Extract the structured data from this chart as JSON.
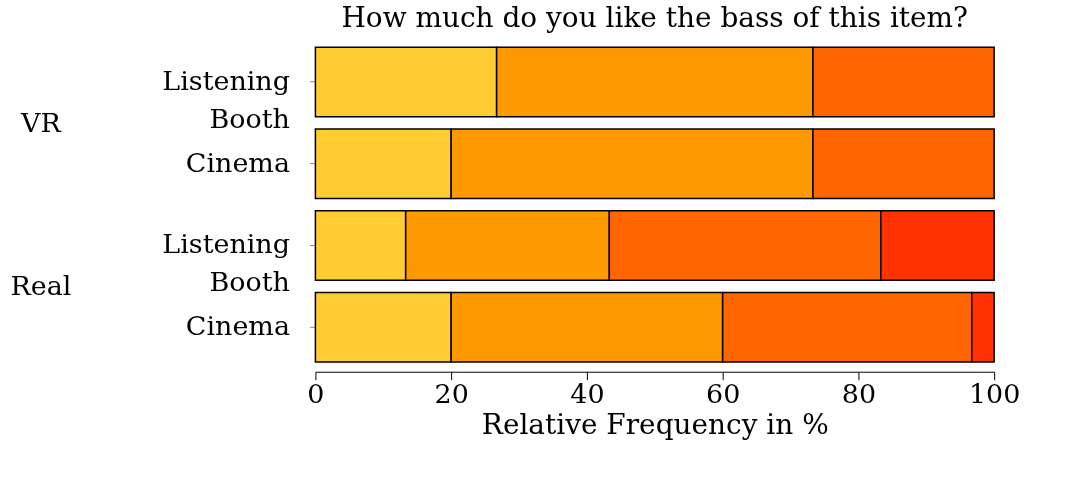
{
  "chart_data": {
    "type": "bar",
    "orientation": "horizontal",
    "stacked": true,
    "title": "How much do you like the bass of this item?",
    "xlabel": "Relative Frequency in %",
    "categories": [
      "Listening Booth",
      "Cinema",
      "Listening Booth",
      "Cinema"
    ],
    "series": [
      {
        "color": "#ffcc33",
        "values": [
          26.7,
          20,
          13.3,
          20
        ]
      },
      {
        "color": "#ff9900",
        "values": [
          46.6,
          53.3,
          30,
          40
        ]
      },
      {
        "color": "#ff6600",
        "values": [
          26.7,
          26.7,
          40,
          36.7
        ]
      },
      {
        "color": "#ff3300",
        "values": [
          null,
          null,
          16.7,
          3.3
        ]
      }
    ],
    "xlim": [
      0,
      100
    ],
    "xticks": [
      0,
      20,
      40,
      60,
      80,
      100
    ],
    "grid": false,
    "annotations": [
      "VR",
      "Real"
    ]
  }
}
